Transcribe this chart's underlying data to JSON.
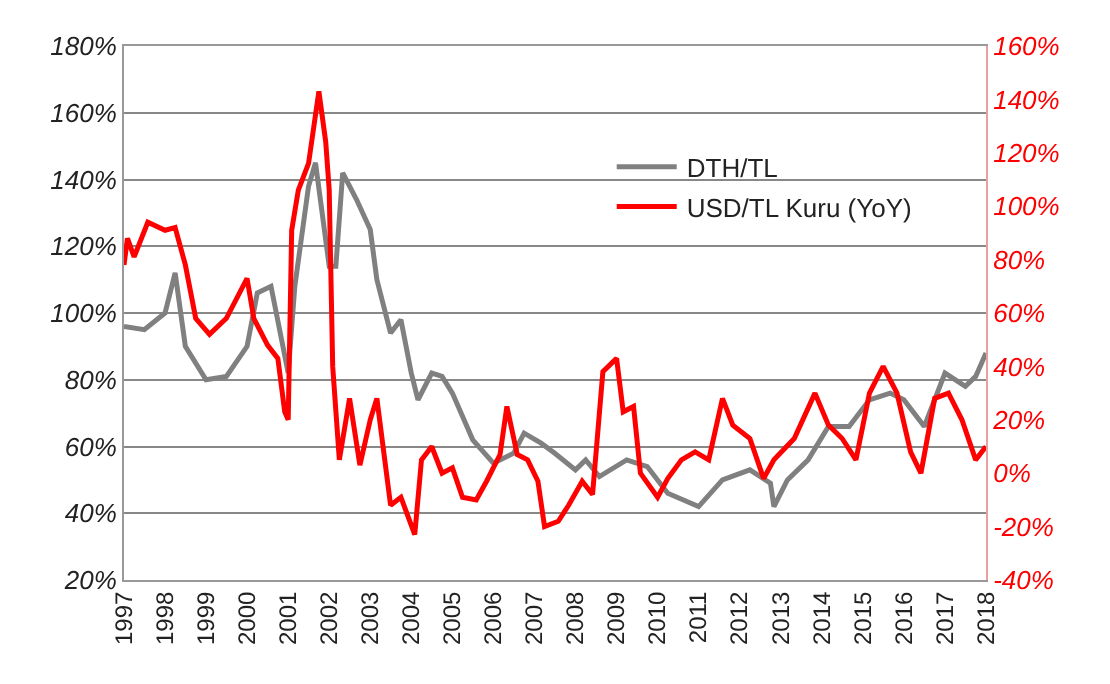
{
  "chart_data": {
    "type": "line",
    "series": [
      {
        "name": "DTH/TL",
        "color": "#808080",
        "axis": "y",
        "x": [
          "1997-01",
          "1997-07",
          "1998-01",
          "1998-04",
          "1998-07",
          "1999-01",
          "1999-07",
          "2000-01",
          "2000-04",
          "2000-08",
          "2001-01",
          "2001-03",
          "2001-07",
          "2001-09",
          "2002-01",
          "2002-03",
          "2002-05",
          "2002-09",
          "2003-01",
          "2003-03",
          "2003-07",
          "2003-10",
          "2004-01",
          "2004-03",
          "2004-07",
          "2004-10",
          "2005-01",
          "2005-07",
          "2006-01",
          "2006-07",
          "2006-10",
          "2007-03",
          "2007-07",
          "2008-01",
          "2008-04",
          "2008-08",
          "2009-04",
          "2009-10",
          "2010-04",
          "2011-01",
          "2011-08",
          "2012-04",
          "2012-10",
          "2012-11",
          "2013-03",
          "2013-09",
          "2014-03",
          "2014-09",
          "2015-03",
          "2015-09",
          "2016-01",
          "2016-07",
          "2017-01",
          "2017-07",
          "2017-10",
          "2018-01"
        ],
        "values": [
          96,
          95,
          100,
          112,
          90,
          80,
          81,
          90,
          106,
          108,
          82,
          108,
          138,
          145,
          114,
          114,
          142,
          134,
          125,
          110,
          94,
          98,
          82,
          74,
          82,
          81,
          76,
          62,
          55,
          58,
          64,
          61,
          58,
          53,
          56,
          51,
          56,
          54,
          46,
          42,
          50,
          53,
          49,
          42,
          50,
          56,
          66,
          66,
          74,
          76,
          74,
          66,
          82,
          78,
          81,
          88
        ]
      },
      {
        "name": "USD/TL Kuru (YoY)",
        "color": "#ff0000",
        "axis": "y2",
        "x": [
          "1997-01",
          "1997-02",
          "1997-04",
          "1997-08",
          "1998-01",
          "1998-04",
          "1998-07",
          "1998-10",
          "1999-02",
          "1999-07",
          "2000-01",
          "2000-03",
          "2000-07",
          "2000-10",
          "2000-12",
          "2001-01",
          "2001-02",
          "2001-04",
          "2001-07",
          "2001-10",
          "2001-12",
          "2002-01",
          "2002-02",
          "2002-04",
          "2002-07",
          "2002-10",
          "2003-01",
          "2003-03",
          "2003-07",
          "2003-10",
          "2004-02",
          "2004-04",
          "2004-07",
          "2004-10",
          "2005-01",
          "2005-04",
          "2005-08",
          "2005-11",
          "2006-03",
          "2006-05",
          "2006-08",
          "2006-11",
          "2007-02",
          "2007-04",
          "2007-08",
          "2007-11",
          "2008-03",
          "2008-06",
          "2008-09",
          "2009-01",
          "2009-03",
          "2009-06",
          "2009-08",
          "2010-01",
          "2010-04",
          "2010-08",
          "2010-12",
          "2011-04",
          "2011-08",
          "2011-11",
          "2012-04",
          "2012-08",
          "2012-11",
          "2013-05",
          "2013-11",
          "2014-03",
          "2014-07",
          "2014-11",
          "2015-03",
          "2015-07",
          "2015-11",
          "2016-03",
          "2016-06",
          "2016-10",
          "2017-02",
          "2017-06",
          "2017-10",
          "2018-01"
        ],
        "values": [
          78,
          88,
          81,
          94,
          91,
          92,
          78,
          58,
          52,
          58,
          73,
          58,
          48,
          43,
          23,
          20,
          91,
          106,
          116,
          143,
          124,
          106,
          40,
          5,
          28,
          3,
          20,
          28,
          -12,
          -9,
          -23,
          5,
          10,
          0,
          2,
          -9,
          -10,
          -3,
          7,
          25,
          7,
          5,
          -3,
          -20,
          -18,
          -12,
          -3,
          -8,
          38,
          43,
          23,
          25,
          0,
          -9,
          -2,
          5,
          8,
          5,
          28,
          18,
          13,
          -2,
          5,
          13,
          30,
          18,
          13,
          5,
          30,
          40,
          30,
          8,
          0,
          28,
          30,
          20,
          5,
          10
        ]
      }
    ],
    "xlim": [
      "1997-01-01",
      "2018-01-01"
    ],
    "xticks": [
      {
        "value": "1997-01-01",
        "label": "1997"
      },
      {
        "value": "1998-01-01",
        "label": "1998"
      },
      {
        "value": "1999-01-01",
        "label": "1999"
      },
      {
        "value": "2000-01-01",
        "label": "2000"
      },
      {
        "value": "2001-01-01",
        "label": "2001"
      },
      {
        "value": "2002-01-01",
        "label": "2002"
      },
      {
        "value": "2003-01-01",
        "label": "2003"
      },
      {
        "value": "2004-01-01",
        "label": "2004"
      },
      {
        "value": "2005-01-01",
        "label": "2005"
      },
      {
        "value": "2006-01-01",
        "label": "2006"
      },
      {
        "value": "2007-01-01",
        "label": "2007"
      },
      {
        "value": "2008-01-01",
        "label": "2008"
      },
      {
        "value": "2009-01-01",
        "label": "2009"
      },
      {
        "value": "2010-01-01",
        "label": "2010"
      },
      {
        "value": "2011-01-01",
        "label": "2011"
      },
      {
        "value": "2012-01-01",
        "label": "2012"
      },
      {
        "value": "2013-01-01",
        "label": "2013"
      },
      {
        "value": "2014-01-01",
        "label": "2014"
      },
      {
        "value": "2015-01-01",
        "label": "2015"
      },
      {
        "value": "2016-01-01",
        "label": "2016"
      },
      {
        "value": "2017-01-01",
        "label": "2017"
      },
      {
        "value": "2018-01-01",
        "label": "2018"
      }
    ],
    "ylim": [
      20,
      180
    ],
    "yticks": [
      {
        "value": 20,
        "label": "20%"
      },
      {
        "value": 40,
        "label": "40%"
      },
      {
        "value": 60,
        "label": "60%"
      },
      {
        "value": 80,
        "label": "80%"
      },
      {
        "value": 100,
        "label": "100%"
      },
      {
        "value": 120,
        "label": "120%"
      },
      {
        "value": 140,
        "label": "140%"
      },
      {
        "value": 160,
        "label": "160%"
      },
      {
        "value": 180,
        "label": "180%"
      }
    ],
    "y2lim": [
      -40,
      160
    ],
    "y2ticks": [
      {
        "value": -40,
        "label": "-40%"
      },
      {
        "value": -20,
        "label": "-20%"
      },
      {
        "value": 0,
        "label": "0%"
      },
      {
        "value": 20,
        "label": "20%"
      },
      {
        "value": 40,
        "label": "40%"
      },
      {
        "value": 60,
        "label": "60%"
      },
      {
        "value": 80,
        "label": "80%"
      },
      {
        "value": 100,
        "label": "100%"
      },
      {
        "value": 120,
        "label": "120%"
      },
      {
        "value": 140,
        "label": "140%"
      },
      {
        "value": 160,
        "label": "160%"
      }
    ],
    "grid": "y",
    "legend": "top right",
    "line_style": "solid"
  }
}
